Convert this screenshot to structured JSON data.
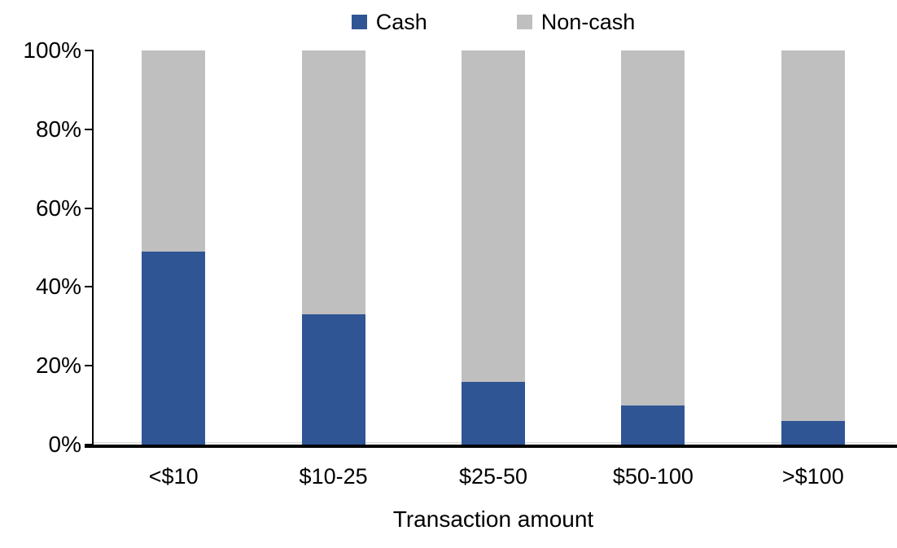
{
  "chart_data": {
    "type": "bar",
    "stacked": true,
    "percent_stacked": true,
    "title": "",
    "xlabel": "Transaction amount",
    "ylabel": "",
    "categories": [
      "<$10",
      "$10-25",
      "$25-50",
      "$50-100",
      ">$100"
    ],
    "series": [
      {
        "name": "Cash",
        "color": "#2F5594",
        "values": [
          49,
          33,
          16,
          10,
          6
        ]
      },
      {
        "name": "Non-cash",
        "color": "#BFBFBF",
        "values": [
          51,
          67,
          84,
          90,
          94
        ]
      }
    ],
    "ylim": [
      0,
      100
    ],
    "ytick_labels": [
      "0%",
      "20%",
      "40%",
      "60%",
      "80%",
      "100%"
    ],
    "legend_position": "top",
    "grid": false,
    "colors": {
      "axis": "#000000",
      "text": "#000000",
      "background": "#FFFFFF",
      "zero_gridline": "#D9D9D9"
    }
  }
}
